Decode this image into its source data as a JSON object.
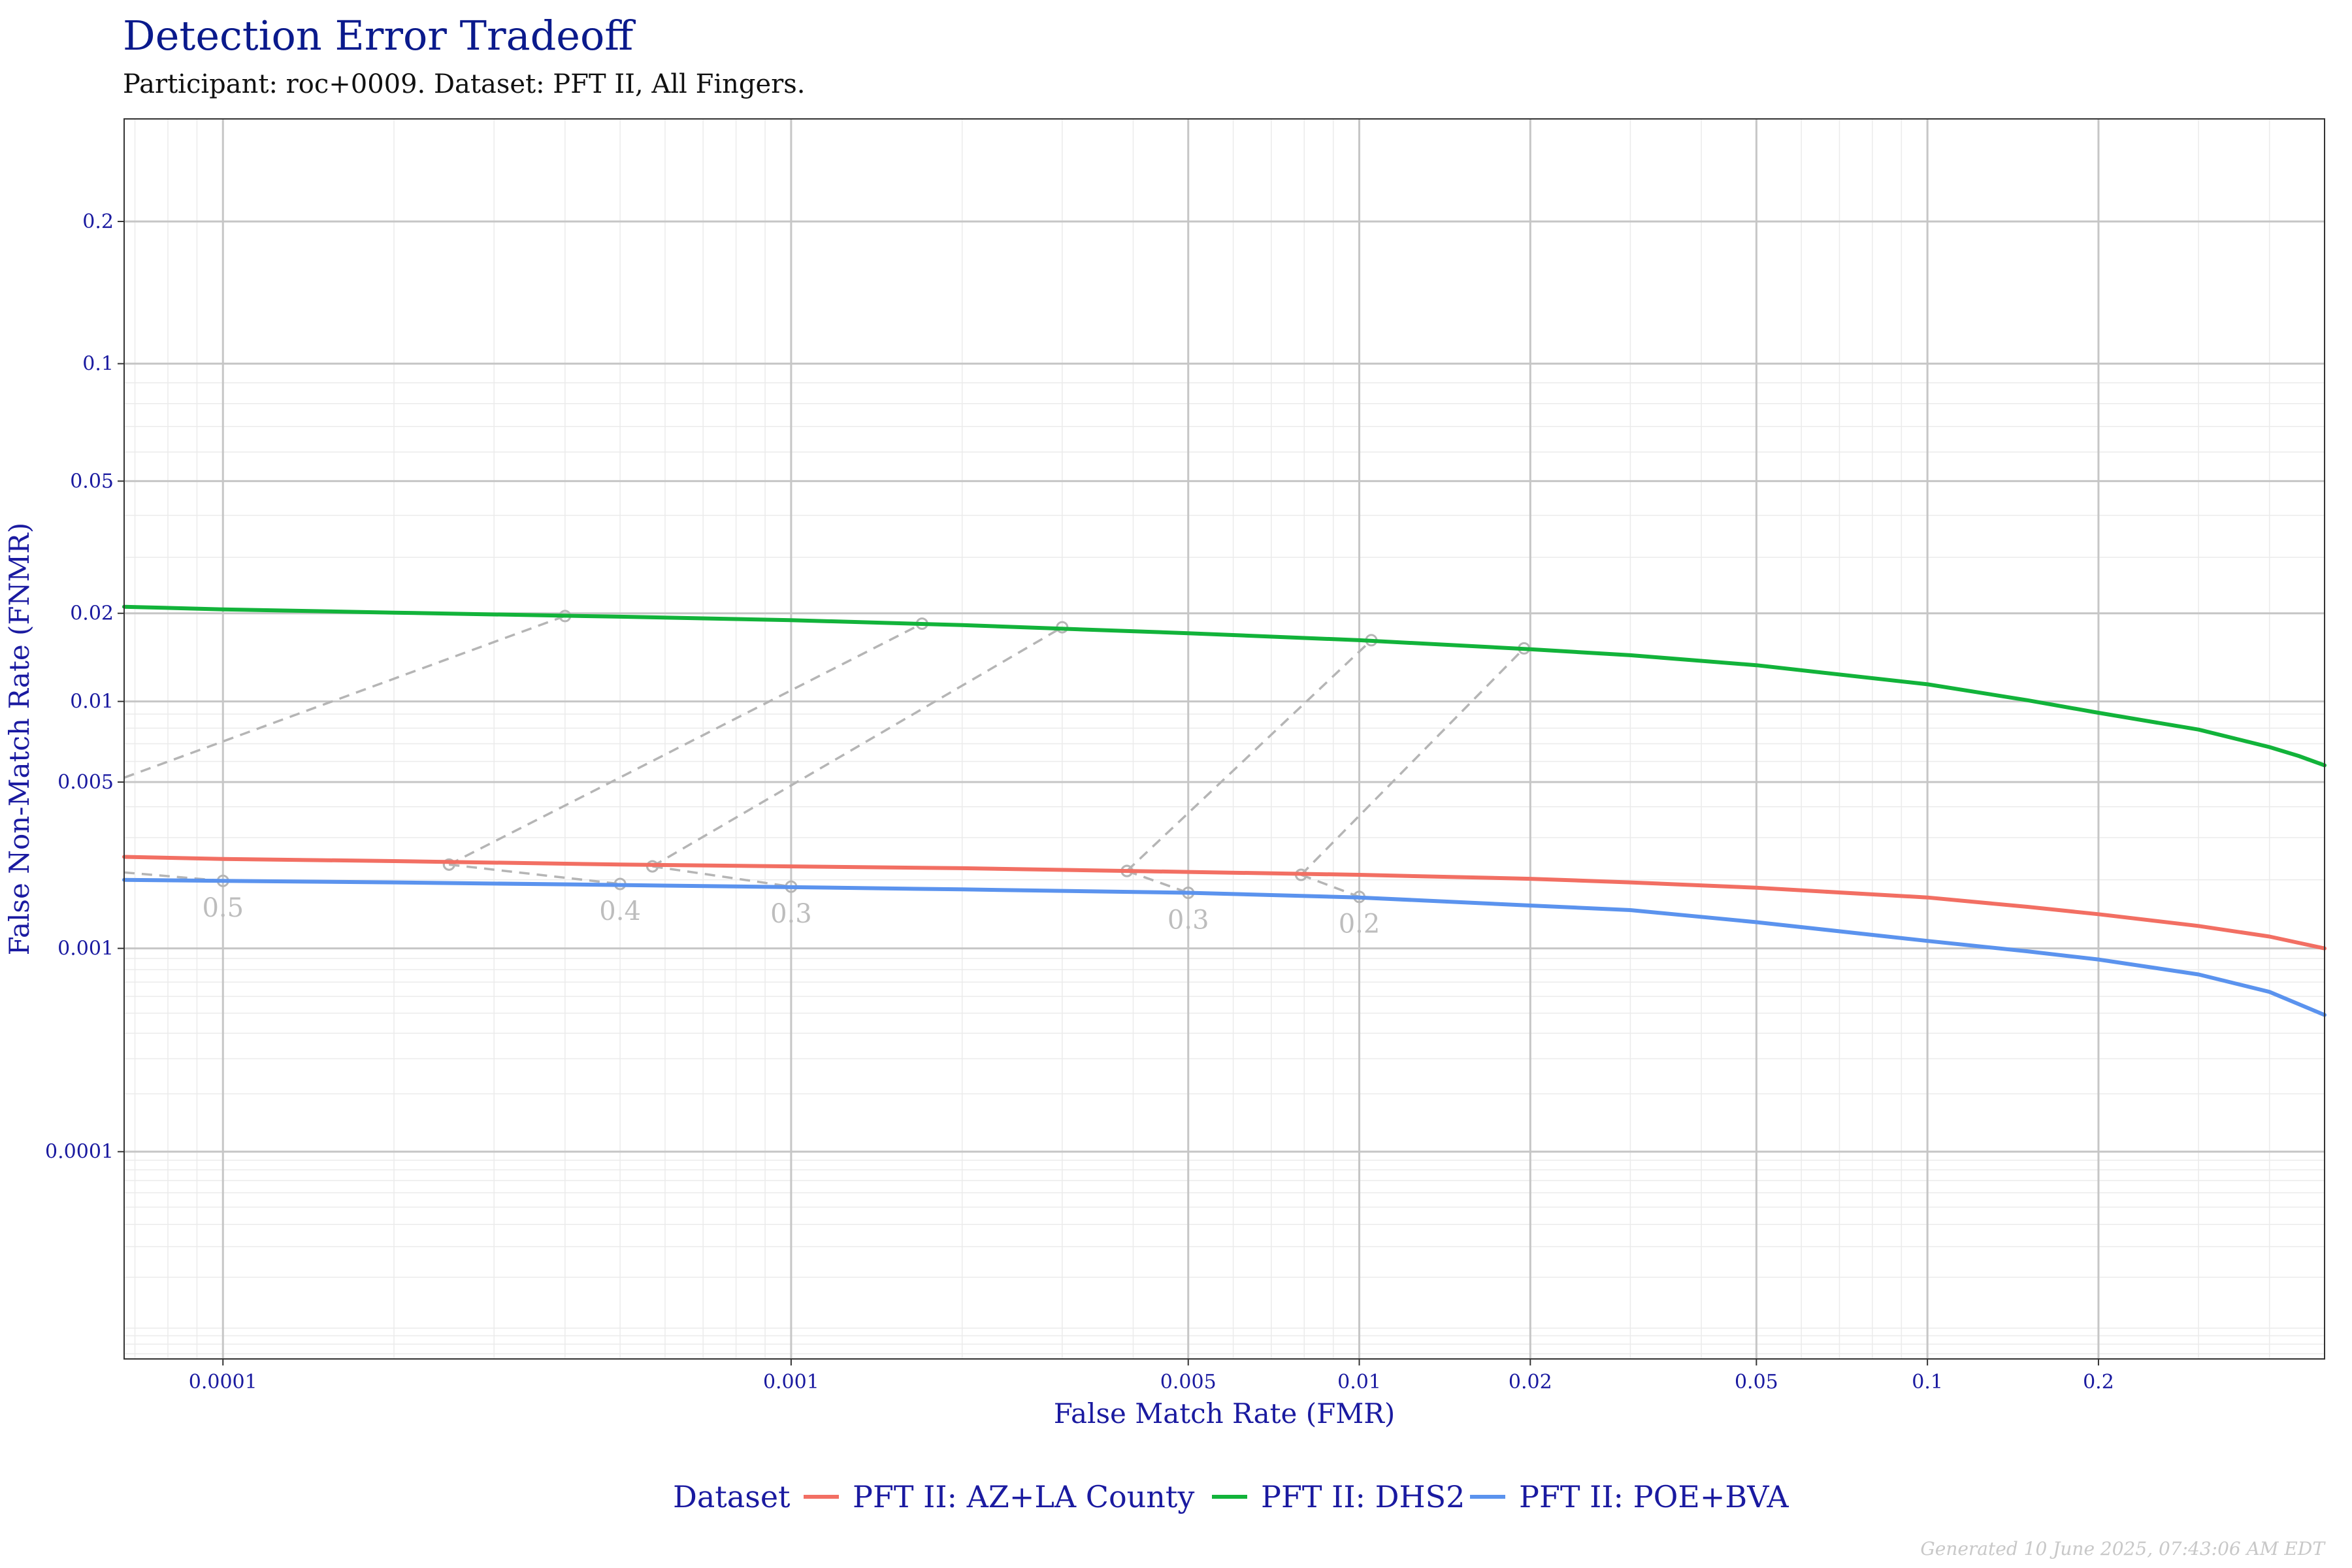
{
  "title": "Detection Error Tradeoff",
  "subtitle": "Participant: roc+0009. Dataset: PFT II, All Fingers.",
  "footer": "Generated 10 June 2025, 07:43:06 AM EDT",
  "chart_data": {
    "type": "line",
    "title": "Detection Error Tradeoff",
    "subtitle": "Participant: roc+0009. Dataset: PFT II, All Fingers.",
    "xlabel": "False Match Rate (FMR)",
    "ylabel": "False Non-Match Rate (FNMR)",
    "x_scale": "log",
    "y_scale": "probit",
    "xlim": [
      6.7e-05,
      0.5
    ],
    "ylim": [
      6.5e-06,
      0.3
    ],
    "x_ticks": [
      0.0001,
      0.001,
      0.005,
      0.01,
      0.02,
      0.05,
      0.1,
      0.2
    ],
    "x_tick_labels": [
      "0.0001",
      "0.001",
      "0.005",
      "0.01",
      "0.02",
      "0.05",
      "0.1",
      "0.2"
    ],
    "y_ticks": [
      0.0001,
      0.001,
      0.005,
      0.01,
      0.02,
      0.05,
      0.1,
      0.2
    ],
    "y_tick_labels": [
      "0.0001",
      "0.001",
      "0.005",
      "0.01",
      "0.02",
      "0.05",
      "0.1",
      "0.2"
    ],
    "grid": true,
    "legend": {
      "title": "Dataset",
      "position": "bottom"
    },
    "series": [
      {
        "name": "PFT II: AZ+LA County",
        "color": "#f26f63",
        "x": [
          6.7e-05,
          0.0001,
          0.0002,
          0.0005,
          0.001,
          0.002,
          0.005,
          0.01,
          0.02,
          0.03,
          0.05,
          0.1,
          0.15,
          0.2,
          0.3,
          0.4,
          0.5
        ],
        "y": [
          0.0025,
          0.00245,
          0.0024,
          0.00232,
          0.00228,
          0.00224,
          0.00216,
          0.0021,
          0.00202,
          0.00195,
          0.00185,
          0.00168,
          0.00153,
          0.00142,
          0.00126,
          0.00113,
          0.001
        ]
      },
      {
        "name": "PFT II: DHS2",
        "color": "#12b33a",
        "x": [
          6.7e-05,
          0.0001,
          0.0002,
          0.0005,
          0.001,
          0.002,
          0.005,
          0.01,
          0.02,
          0.03,
          0.05,
          0.1,
          0.15,
          0.2,
          0.3,
          0.4,
          0.45,
          0.5
        ],
        "y": [
          0.021,
          0.0206,
          0.0201,
          0.0195,
          0.019,
          0.0183,
          0.0172,
          0.0163,
          0.0152,
          0.0145,
          0.0134,
          0.0115,
          0.0101,
          0.0091,
          0.0079,
          0.0068,
          0.0063,
          0.0058
        ]
      },
      {
        "name": "PFT II: POE+BVA",
        "color": "#5b93ee",
        "x": [
          6.7e-05,
          0.0001,
          0.0002,
          0.0005,
          0.001,
          0.002,
          0.005,
          0.01,
          0.02,
          0.03,
          0.05,
          0.1,
          0.15,
          0.2,
          0.3,
          0.4,
          0.5
        ],
        "y": [
          0.002,
          0.00198,
          0.00195,
          0.0019,
          0.00186,
          0.00182,
          0.00176,
          0.00168,
          0.00155,
          0.00148,
          0.00131,
          0.00108,
          0.00097,
          0.00089,
          0.00076,
          0.00063,
          0.00049
        ]
      }
    ],
    "thresholds": [
      {
        "label": "0.5",
        "points": [
          [
            6.7e-05,
            0.0052
          ],
          [
            0.0004,
            0.0196
          ],
          [
            6.7e-05,
            0.00215
          ],
          [
            0.0001,
            0.00198
          ]
        ]
      },
      {
        "label": "0.4",
        "points": [
          [
            0.00025,
            0.00232
          ],
          [
            0.0017,
            0.0185
          ],
          [
            0.00025,
            0.00232
          ],
          [
            0.0005,
            0.00192
          ]
        ]
      },
      {
        "label": "0.3",
        "points": [
          [
            0.00057,
            0.00228
          ],
          [
            0.003,
            0.018
          ],
          [
            0.00057,
            0.00228
          ],
          [
            0.001,
            0.00187
          ]
        ]
      },
      {
        "label": "0.3",
        "points": [
          [
            0.0039,
            0.00218
          ],
          [
            0.0105,
            0.0163
          ],
          [
            0.0039,
            0.00218
          ],
          [
            0.005,
            0.00176
          ]
        ]
      },
      {
        "label": "0.2",
        "points": [
          [
            0.0079,
            0.0021
          ],
          [
            0.0195,
            0.0153
          ],
          [
            0.0079,
            0.0021
          ],
          [
            0.01,
            0.00169
          ]
        ]
      }
    ]
  },
  "legend_items": [
    "PFT II: AZ+LA County",
    "PFT II: DHS2",
    "PFT II: POE+BVA"
  ]
}
